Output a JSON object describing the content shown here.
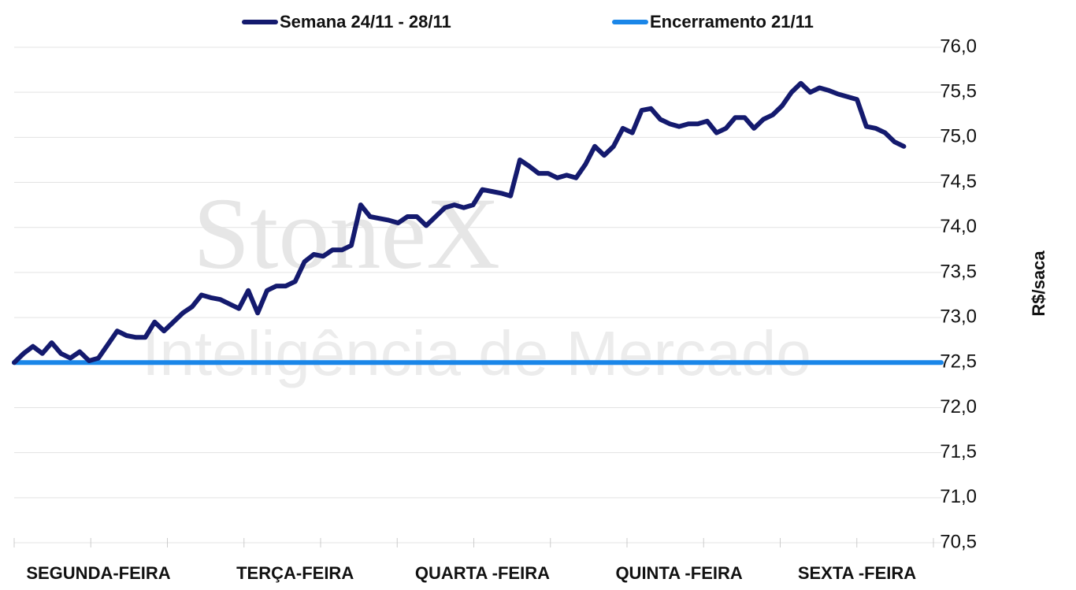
{
  "chart_data": {
    "type": "line",
    "watermark": [
      "StoneX",
      "Inteligência de Mercado"
    ],
    "y_axis_label": "R$/saca",
    "categories": [
      null,
      null,
      null,
      null,
      null,
      null,
      null,
      null,
      null,
      "SEGUNDA-FEIRA",
      null,
      null,
      null,
      null,
      null,
      null,
      null,
      null,
      null,
      null,
      null,
      null,
      null,
      null,
      null,
      null,
      null,
      null,
      null,
      null,
      "TERÇA-FEIRA",
      null,
      null,
      null,
      null,
      null,
      null,
      null,
      null,
      null,
      null,
      null,
      null,
      null,
      null,
      null,
      null,
      null,
      null,
      null,
      "QUARTA -FEIRA",
      null,
      null,
      null,
      null,
      null,
      null,
      null,
      null,
      null,
      null,
      null,
      null,
      null,
      null,
      null,
      null,
      null,
      null,
      null,
      null,
      "QUINTA -FEIRA",
      null,
      null,
      null,
      null,
      null,
      null,
      null,
      null,
      null,
      null,
      null,
      null,
      null,
      null,
      null,
      null,
      null,
      null,
      "SEXTA -FEIRA",
      null,
      null,
      null,
      null,
      null,
      null,
      null,
      null,
      null
    ],
    "series": [
      {
        "name": "Semana 24/11 - 28/11",
        "color": "#141a6e",
        "values": [
          72.5,
          72.6,
          72.68,
          72.6,
          72.72,
          72.6,
          72.55,
          72.62,
          72.52,
          72.55,
          72.7,
          72.85,
          72.8,
          72.78,
          72.78,
          72.95,
          72.85,
          72.95,
          73.05,
          73.12,
          73.25,
          73.22,
          73.2,
          73.15,
          73.1,
          73.3,
          73.05,
          73.3,
          73.35,
          73.35,
          73.4,
          73.62,
          73.7,
          73.68,
          73.75,
          73.75,
          73.8,
          74.25,
          74.12,
          74.1,
          74.08,
          74.05,
          74.12,
          74.12,
          74.02,
          74.12,
          74.22,
          74.25,
          74.22,
          74.25,
          74.42,
          74.4,
          74.38,
          74.35,
          74.75,
          74.68,
          74.6,
          74.6,
          74.55,
          74.58,
          74.55,
          74.7,
          74.9,
          74.8,
          74.9,
          75.1,
          75.05,
          75.3,
          75.32,
          75.2,
          75.15,
          75.12,
          75.15,
          75.15,
          75.18,
          75.05,
          75.1,
          75.22,
          75.22,
          75.1,
          75.2,
          75.25,
          75.35,
          75.5,
          75.6,
          75.5,
          75.55,
          75.52,
          75.48,
          75.45,
          75.42,
          75.12,
          75.1,
          75.05,
          74.95,
          74.9,
          null,
          null,
          null,
          null
        ]
      },
      {
        "name": "Encerramento 21/11",
        "color": "#1a86e8",
        "values": [
          72.5,
          72.5,
          72.5,
          72.5,
          72.5,
          72.5,
          72.5,
          72.5,
          72.5,
          72.5,
          72.5,
          72.5,
          72.5,
          72.5,
          72.5,
          72.5,
          72.5,
          72.5,
          72.5,
          72.5,
          72.5,
          72.5,
          72.5,
          72.5,
          72.5,
          72.5,
          72.5,
          72.5,
          72.5,
          72.5,
          72.5,
          72.5,
          72.5,
          72.5,
          72.5,
          72.5,
          72.5,
          72.5,
          72.5,
          72.5,
          72.5,
          72.5,
          72.5,
          72.5,
          72.5,
          72.5,
          72.5,
          72.5,
          72.5,
          72.5,
          72.5,
          72.5,
          72.5,
          72.5,
          72.5,
          72.5,
          72.5,
          72.5,
          72.5,
          72.5,
          72.5,
          72.5,
          72.5,
          72.5,
          72.5,
          72.5,
          72.5,
          72.5,
          72.5,
          72.5,
          72.5,
          72.5,
          72.5,
          72.5,
          72.5,
          72.5,
          72.5,
          72.5,
          72.5,
          72.5,
          72.5,
          72.5,
          72.5,
          72.5,
          72.5,
          72.5,
          72.5,
          72.5,
          72.5,
          72.5,
          72.5,
          72.5,
          72.5,
          72.5,
          72.5,
          72.5,
          72.5,
          72.5,
          72.5,
          72.5
        ]
      }
    ],
    "ylim": [
      70.5,
      76
    ],
    "yticks": [
      {
        "value": 70.5,
        "label": "70,5"
      },
      {
        "value": 71,
        "label": "71,0"
      },
      {
        "value": 71.5,
        "label": "71,5"
      },
      {
        "value": 72,
        "label": "72,0"
      },
      {
        "value": 72.5,
        "label": "72,5"
      },
      {
        "value": 73,
        "label": "73,0"
      },
      {
        "value": 73.5,
        "label": "73,5"
      },
      {
        "value": 74,
        "label": "74,0"
      },
      {
        "value": 74.5,
        "label": "74,5"
      },
      {
        "value": 75,
        "label": "75,0"
      },
      {
        "value": 75.5,
        "label": "75,5"
      },
      {
        "value": 76,
        "label": "76,0"
      }
    ],
    "y_axis_side": "right",
    "grid": true,
    "legend": "top"
  }
}
